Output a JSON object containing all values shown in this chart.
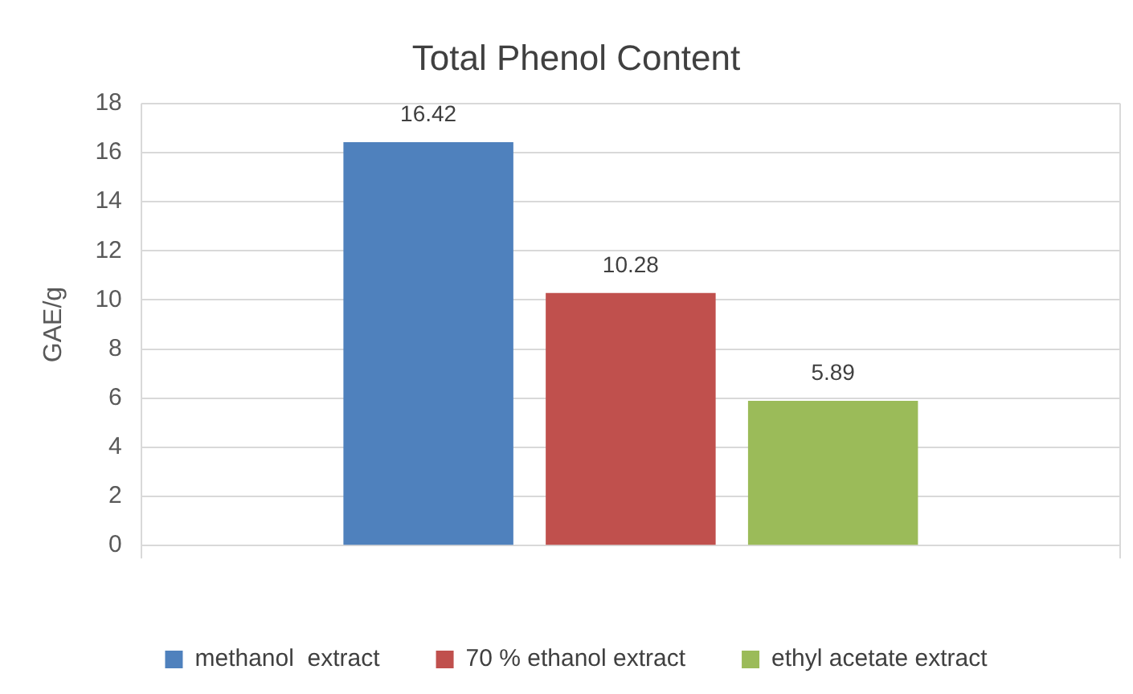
{
  "chart_data": {
    "type": "bar",
    "title": "Total Phenol Content",
    "ylabel": "GAE/g",
    "categories": [
      null
    ],
    "series": [
      {
        "name": "methanol  extract",
        "color": "#4f81bd",
        "values": [
          16.42
        ]
      },
      {
        "name": "70 % ethanol extract",
        "color": "#c0504d",
        "values": [
          10.28
        ]
      },
      {
        "name": "ethyl acetate extract",
        "color": "#9bbb59",
        "values": [
          5.89
        ]
      }
    ],
    "ylim": [
      0,
      18
    ],
    "yticks": [
      0,
      2,
      4,
      6,
      8,
      10,
      12,
      14,
      16,
      18
    ],
    "grid": true,
    "legend": "bottom",
    "data_labels": true
  }
}
